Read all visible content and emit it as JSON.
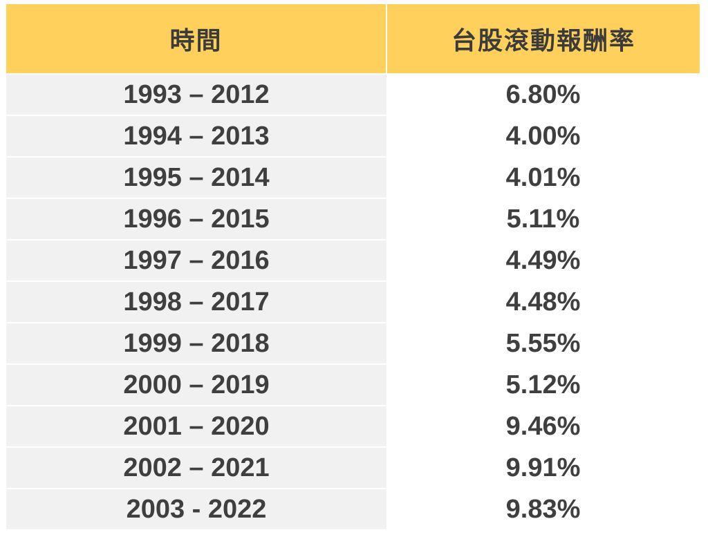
{
  "table": {
    "headers": {
      "period": "時間",
      "return": "台股滾動報酬率"
    },
    "rows": [
      {
        "period": "1993 – 2012",
        "value": "6.80%"
      },
      {
        "period": "1994 – 2013",
        "value": "4.00%"
      },
      {
        "period": "1995 – 2014",
        "value": "4.01%"
      },
      {
        "period": "1996 – 2015",
        "value": "5.11%"
      },
      {
        "period": "1997 – 2016",
        "value": "4.49%"
      },
      {
        "period": "1998 – 2017",
        "value": "4.48%"
      },
      {
        "period": "1999 – 2018",
        "value": "5.55%"
      },
      {
        "period": "2000 – 2019",
        "value": "5.12%"
      },
      {
        "period": "2001 – 2020",
        "value": "9.46%"
      },
      {
        "period": "2002 – 2021",
        "value": "9.91%"
      },
      {
        "period": "2003 - 2022",
        "value": "9.83%"
      }
    ]
  },
  "colors": {
    "header_bg": "#ffd15c",
    "period_cell_bg": "#f1f1f1",
    "value_cell_bg": "#ffffff",
    "text": "#3f3f3f"
  }
}
